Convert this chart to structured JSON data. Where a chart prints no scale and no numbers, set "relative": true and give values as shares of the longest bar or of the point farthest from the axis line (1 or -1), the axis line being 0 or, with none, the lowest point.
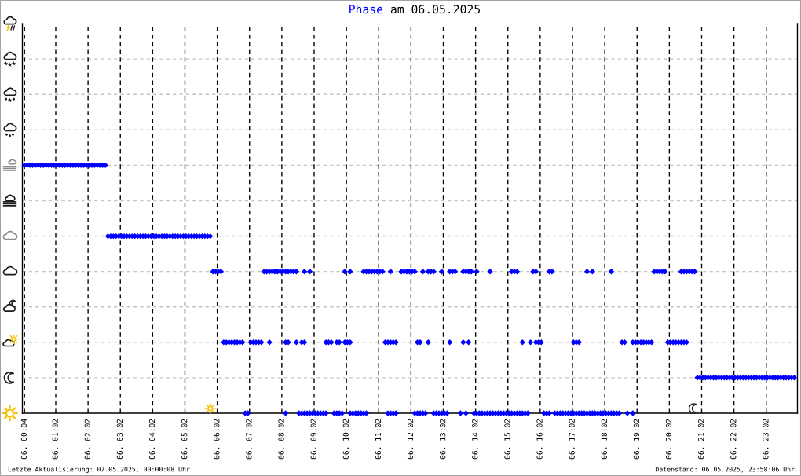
{
  "chart_data": {
    "type": "scatter",
    "title": "Phase am 06.05.2025",
    "xlim": [
      "2025-05-06T00:00",
      "2025-05-07T00:00"
    ],
    "xticks": [
      {
        "value": "2025-05-06T00:04",
        "label": "06. 00:04"
      },
      {
        "value": "2025-05-06T01:02",
        "label": "06. 01:02"
      },
      {
        "value": "2025-05-06T02:02",
        "label": "06. 02:02"
      },
      {
        "value": "2025-05-06T03:02",
        "label": "06. 03:02"
      },
      {
        "value": "2025-05-06T04:02",
        "label": "06. 04:02"
      },
      {
        "value": "2025-05-06T05:02",
        "label": "06. 05:02"
      },
      {
        "value": "2025-05-06T06:02",
        "label": "06. 06:02"
      },
      {
        "value": "2025-05-06T07:02",
        "label": "06. 07:02"
      },
      {
        "value": "2025-05-06T08:02",
        "label": "06. 08:02"
      },
      {
        "value": "2025-05-06T09:02",
        "label": "06. 09:02"
      },
      {
        "value": "2025-05-06T10:02",
        "label": "06. 10:02"
      },
      {
        "value": "2025-05-06T11:02",
        "label": "06. 11:02"
      },
      {
        "value": "2025-05-06T12:02",
        "label": "06. 12:02"
      },
      {
        "value": "2025-05-06T13:02",
        "label": "06. 13:02"
      },
      {
        "value": "2025-05-06T14:02",
        "label": "06. 14:02"
      },
      {
        "value": "2025-05-06T15:02",
        "label": "06. 15:02"
      },
      {
        "value": "2025-05-06T16:02",
        "label": "06. 16:02"
      },
      {
        "value": "2025-05-06T17:02",
        "label": "06. 17:02"
      },
      {
        "value": "2025-05-06T18:02",
        "label": "06. 18:02"
      },
      {
        "value": "2025-05-06T19:02",
        "label": "06. 19:02"
      },
      {
        "value": "2025-05-06T20:02",
        "label": "06. 20:02"
      },
      {
        "value": "2025-05-06T21:02",
        "label": "06. 21:02"
      },
      {
        "value": "2025-05-06T22:02",
        "label": "06. 22:02"
      },
      {
        "value": "2025-05-06T23:02",
        "label": "06. 23:02"
      }
    ],
    "relative": true,
    "tick_labels": "x",
    "grid": true,
    "marker": "diamond",
    "color": "#0000ff",
    "x": [
      "2025-05-06T00:04",
      "2025-05-06T00:09",
      "2025-05-06T00:14",
      "2025-05-06T00:19",
      "2025-05-06T00:24",
      "2025-05-06T00:29",
      "2025-05-06T00:34",
      "2025-05-06T00:39",
      "2025-05-06T00:44",
      "2025-05-06T00:49",
      "2025-05-06T00:54",
      "2025-05-06T00:59",
      "2025-05-06T01:04",
      "2025-05-06T01:09",
      "2025-05-06T01:14",
      "2025-05-06T01:19",
      "2025-05-06T01:24",
      "2025-05-06T01:29",
      "2025-05-06T01:34",
      "2025-05-06T01:39",
      "2025-05-06T01:44",
      "2025-05-06T01:49",
      "2025-05-06T01:54",
      "2025-05-06T01:59",
      "2025-05-06T02:04",
      "2025-05-06T02:09",
      "2025-05-06T02:14",
      "2025-05-06T02:19",
      "2025-05-06T02:24",
      "2025-05-06T02:29",
      "2025-05-06T02:34",
      "2025-05-06T02:39",
      "2025-05-06T02:44",
      "2025-05-06T02:49",
      "2025-05-06T02:54",
      "2025-05-06T02:59",
      "2025-05-06T03:04",
      "2025-05-06T03:09",
      "2025-05-06T03:14",
      "2025-05-06T03:19",
      "2025-05-06T03:24",
      "2025-05-06T03:29",
      "2025-05-06T03:34",
      "2025-05-06T03:39",
      "2025-05-06T03:44",
      "2025-05-06T03:49",
      "2025-05-06T03:54",
      "2025-05-06T03:59",
      "2025-05-06T04:04",
      "2025-05-06T04:09",
      "2025-05-06T04:14",
      "2025-05-06T04:19",
      "2025-05-06T04:24",
      "2025-05-06T04:29",
      "2025-05-06T04:34",
      "2025-05-06T04:39",
      "2025-05-06T04:44",
      "2025-05-06T04:49",
      "2025-05-06T04:54",
      "2025-05-06T04:59",
      "2025-05-06T05:04",
      "2025-05-06T05:09",
      "2025-05-06T05:14",
      "2025-05-06T05:19",
      "2025-05-06T05:24",
      "2025-05-06T05:29",
      "2025-05-06T05:34",
      "2025-05-06T05:39",
      "2025-05-06T05:44",
      "2025-05-06T05:49",
      "2025-05-06T05:54",
      "2025-05-06T05:59",
      "2025-05-06T06:04",
      "2025-05-06T06:09",
      "2025-05-06T07:29",
      "2025-05-06T07:34",
      "2025-05-06T07:39",
      "2025-05-06T07:44",
      "2025-05-06T07:49",
      "2025-05-06T07:54",
      "2025-05-06T07:59",
      "2025-05-06T08:04",
      "2025-05-06T08:09",
      "2025-05-06T08:14",
      "2025-05-06T08:19",
      "2025-05-06T08:24",
      "2025-05-06T08:29",
      "2025-05-06T08:44",
      "2025-05-06T08:54",
      "2025-05-06T09:59",
      "2025-05-06T10:09",
      "2025-05-06T10:34",
      "2025-05-06T10:39",
      "2025-05-06T10:44",
      "2025-05-06T10:49",
      "2025-05-06T10:54",
      "2025-05-06T10:59",
      "2025-05-06T11:04",
      "2025-05-06T11:09",
      "2025-05-06T11:24",
      "2025-05-06T11:44",
      "2025-05-06T11:49",
      "2025-05-06T11:54",
      "2025-05-06T11:59",
      "2025-05-06T12:04",
      "2025-05-06T12:09",
      "2025-05-06T12:24",
      "2025-05-06T12:34",
      "2025-05-06T12:39",
      "2025-05-06T12:44",
      "2025-05-06T12:59",
      "2025-05-06T13:14",
      "2025-05-06T13:19",
      "2025-05-06T13:24",
      "2025-05-06T13:39",
      "2025-05-06T13:44",
      "2025-05-06T13:49",
      "2025-05-06T13:54",
      "2025-05-06T14:04",
      "2025-05-06T14:29",
      "2025-05-06T15:09",
      "2025-05-06T15:14",
      "2025-05-06T15:19",
      "2025-05-06T15:49",
      "2025-05-06T15:54",
      "2025-05-06T16:19",
      "2025-05-06T16:24",
      "2025-05-06T17:29",
      "2025-05-06T17:39",
      "2025-05-06T18:14",
      "2025-05-06T19:34",
      "2025-05-06T19:39",
      "2025-05-06T19:44",
      "2025-05-06T19:49",
      "2025-05-06T19:54",
      "2025-05-06T20:24",
      "2025-05-06T20:29",
      "2025-05-06T20:34",
      "2025-05-06T20:39",
      "2025-05-06T20:44",
      "2025-05-06T20:49",
      "2025-05-06T06:14",
      "2025-05-06T06:19",
      "2025-05-06T06:24",
      "2025-05-06T06:29",
      "2025-05-06T06:34",
      "2025-05-06T06:39",
      "2025-05-06T06:44",
      "2025-05-06T06:49",
      "2025-05-06T07:04",
      "2025-05-06T07:09",
      "2025-05-06T07:14",
      "2025-05-06T07:19",
      "2025-05-06T07:24",
      "2025-05-06T07:39",
      "2025-05-06T08:09",
      "2025-05-06T08:14",
      "2025-05-06T08:29",
      "2025-05-06T08:39",
      "2025-05-06T08:44",
      "2025-05-06T09:24",
      "2025-05-06T09:29",
      "2025-05-06T09:34",
      "2025-05-06T09:44",
      "2025-05-06T09:49",
      "2025-05-06T09:59",
      "2025-05-06T10:04",
      "2025-05-06T10:09",
      "2025-05-06T11:14",
      "2025-05-06T11:19",
      "2025-05-06T11:24",
      "2025-05-06T11:29",
      "2025-05-06T11:34",
      "2025-05-06T12:14",
      "2025-05-06T12:19",
      "2025-05-06T12:34",
      "2025-05-06T13:14",
      "2025-05-06T13:39",
      "2025-05-06T13:49",
      "2025-05-06T15:29",
      "2025-05-06T15:44",
      "2025-05-06T15:54",
      "2025-05-06T15:59",
      "2025-05-06T16:04",
      "2025-05-06T17:04",
      "2025-05-06T17:09",
      "2025-05-06T17:14",
      "2025-05-06T18:34",
      "2025-05-06T18:39",
      "2025-05-06T18:54",
      "2025-05-06T18:59",
      "2025-05-06T19:04",
      "2025-05-06T19:09",
      "2025-05-06T19:14",
      "2025-05-06T19:19",
      "2025-05-06T19:24",
      "2025-05-06T19:29",
      "2025-05-06T19:59",
      "2025-05-06T20:04",
      "2025-05-06T20:09",
      "2025-05-06T20:14",
      "2025-05-06T20:19",
      "2025-05-06T20:24",
      "2025-05-06T20:29",
      "2025-05-06T20:34",
      "2025-05-06T06:54",
      "2025-05-06T06:59",
      "2025-05-06T08:09",
      "2025-05-06T08:34",
      "2025-05-06T08:39",
      "2025-05-06T08:44",
      "2025-05-06T08:49",
      "2025-05-06T08:54",
      "2025-05-06T08:59",
      "2025-05-06T09:04",
      "2025-05-06T09:09",
      "2025-05-06T09:14",
      "2025-05-06T09:19",
      "2025-05-06T09:24",
      "2025-05-06T09:39",
      "2025-05-06T09:44",
      "2025-05-06T09:49",
      "2025-05-06T09:54",
      "2025-05-06T10:09",
      "2025-05-06T10:14",
      "2025-05-06T10:19",
      "2025-05-06T10:24",
      "2025-05-06T10:29",
      "2025-05-06T10:34",
      "2025-05-06T10:39",
      "2025-05-06T11:19",
      "2025-05-06T11:24",
      "2025-05-06T11:29",
      "2025-05-06T11:34",
      "2025-05-06T12:09",
      "2025-05-06T12:14",
      "2025-05-06T12:19",
      "2025-05-06T12:24",
      "2025-05-06T12:29",
      "2025-05-06T12:44",
      "2025-05-06T12:49",
      "2025-05-06T12:54",
      "2025-05-06T12:59",
      "2025-05-06T13:04",
      "2025-05-06T13:09",
      "2025-05-06T13:34",
      "2025-05-06T13:44",
      "2025-05-06T13:59",
      "2025-05-06T14:04",
      "2025-05-06T14:09",
      "2025-05-06T14:14",
      "2025-05-06T14:19",
      "2025-05-06T14:24",
      "2025-05-06T14:29",
      "2025-05-06T14:34",
      "2025-05-06T14:39",
      "2025-05-06T14:44",
      "2025-05-06T14:49",
      "2025-05-06T14:54",
      "2025-05-06T14:59",
      "2025-05-06T15:04",
      "2025-05-06T15:09",
      "2025-05-06T15:14",
      "2025-05-06T15:19",
      "2025-05-06T15:24",
      "2025-05-06T15:29",
      "2025-05-06T15:34",
      "2025-05-06T15:39",
      "2025-05-06T16:09",
      "2025-05-06T16:14",
      "2025-05-06T16:19",
      "2025-05-06T16:29",
      "2025-05-06T16:34",
      "2025-05-06T16:39",
      "2025-05-06T16:44",
      "2025-05-06T16:49",
      "2025-05-06T16:54",
      "2025-05-06T16:59",
      "2025-05-06T17:04",
      "2025-05-06T17:09",
      "2025-05-06T17:14",
      "2025-05-06T17:19",
      "2025-05-06T17:24",
      "2025-05-06T17:29",
      "2025-05-06T17:34",
      "2025-05-06T17:39",
      "2025-05-06T17:44",
      "2025-05-06T17:49",
      "2025-05-06T17:54",
      "2025-05-06T17:59",
      "2025-05-06T18:04",
      "2025-05-06T18:09",
      "2025-05-06T18:14",
      "2025-05-06T18:19",
      "2025-05-06T18:24",
      "2025-05-06T18:29",
      "2025-05-06T18:44",
      "2025-05-06T18:54",
      "2025-05-06T20:54",
      "2025-05-06T20:59",
      "2025-05-06T21:04",
      "2025-05-06T21:09",
      "2025-05-06T21:14",
      "2025-05-06T21:19",
      "2025-05-06T21:24",
      "2025-05-06T21:29",
      "2025-05-06T21:34",
      "2025-05-06T21:39",
      "2025-05-06T21:44",
      "2025-05-06T21:49",
      "2025-05-06T21:54",
      "2025-05-06T21:59",
      "2025-05-06T22:04",
      "2025-05-06T22:09",
      "2025-05-06T22:14",
      "2025-05-06T22:19",
      "2025-05-06T22:24",
      "2025-05-06T22:29",
      "2025-05-06T22:34",
      "2025-05-06T22:39",
      "2025-05-06T22:44",
      "2025-05-06T22:49",
      "2025-05-06T22:54",
      "2025-05-06T22:59",
      "2025-05-06T23:04",
      "2025-05-06T23:09",
      "2025-05-06T23:14",
      "2025-05-06T23:19",
      "2025-05-06T23:24",
      "2025-05-06T23:29",
      "2025-05-06T23:34",
      "2025-05-06T23:39",
      "2025-05-06T23:44",
      "2025-05-06T23:49",
      "2025-05-06T23:54"
    ],
    "values": [
      1,
      1,
      1,
      1,
      1,
      1,
      1,
      1,
      1,
      1,
      1,
      1,
      1,
      1,
      1,
      1,
      1,
      1,
      1,
      1,
      1,
      1,
      1,
      1,
      1,
      1,
      1,
      1,
      1,
      1,
      1,
      0.714,
      0.714,
      0.714,
      0.714,
      0.714,
      0.714,
      0.714,
      0.714,
      0.714,
      0.714,
      0.714,
      0.714,
      0.714,
      0.714,
      0.714,
      0.714,
      0.714,
      0.714,
      0.714,
      0.714,
      0.714,
      0.714,
      0.714,
      0.714,
      0.714,
      0.714,
      0.714,
      0.714,
      0.714,
      0.714,
      0.714,
      0.714,
      0.714,
      0.714,
      0.714,
      0.714,
      0.714,
      0.714,
      0.714,
      0.571,
      0.571,
      0.571,
      0.571,
      0.571,
      0.571,
      0.571,
      0.571,
      0.571,
      0.571,
      0.571,
      0.571,
      0.571,
      0.571,
      0.571,
      0.571,
      0.571,
      0.571,
      0.571,
      0.571,
      0.571,
      0.571,
      0.571,
      0.571,
      0.571,
      0.571,
      0.571,
      0.571,
      0.571,
      0.571,
      0.571,
      0.571,
      0.571,
      0.571,
      0.571,
      0.571,
      0.571,
      0.571,
      0.571,
      0.571,
      0.571,
      0.571,
      0.571,
      0.571,
      0.571,
      0.571,
      0.571,
      0.571,
      0.571,
      0.571,
      0.571,
      0.571,
      0.571,
      0.571,
      0.571,
      0.571,
      0.571,
      0.571,
      0.571,
      0.571,
      0.571,
      0.571,
      0.571,
      0.571,
      0.571,
      0.571,
      0.571,
      0.571,
      0.571,
      0.571,
      0.571,
      0.286,
      0.286,
      0.286,
      0.286,
      0.286,
      0.286,
      0.286,
      0.286,
      0.286,
      0.286,
      0.286,
      0.286,
      0.286,
      0.286,
      0.286,
      0.286,
      0.286,
      0.286,
      0.286,
      0.286,
      0.286,
      0.286,
      0.286,
      0.286,
      0.286,
      0.286,
      0.286,
      0.286,
      0.286,
      0.286,
      0.286,
      0.286,
      0.286,
      0.286,
      0.286,
      0.286,
      0.286,
      0.286,
      0.286,
      0.286,
      0.286,
      0.286,
      0.286,
      0.286,
      0.286,
      0.286,
      0.286,
      0.286,
      0.286,
      0.286,
      0.286,
      0.286,
      0.286,
      0.286,
      0.286,
      0.286,
      0.286,
      0.286,
      0.286,
      0.286,
      0.286,
      0.286,
      0.286,
      0.286,
      0,
      0,
      0,
      0,
      0,
      0,
      0,
      0,
      0,
      0,
      0,
      0,
      0,
      0,
      0,
      0,
      0,
      0,
      0,
      0,
      0,
      0,
      0,
      0,
      0,
      0,
      0,
      0,
      0,
      0,
      0,
      0,
      0,
      0,
      0,
      0,
      0,
      0,
      0,
      0,
      0,
      0,
      0,
      0,
      0,
      0,
      0,
      0,
      0,
      0,
      0,
      0,
      0,
      0,
      0,
      0,
      0,
      0,
      0,
      0,
      0,
      0,
      0,
      0,
      0,
      0,
      0,
      0,
      0,
      0,
      0,
      0,
      0,
      0,
      0,
      0,
      0,
      0,
      0,
      0,
      0,
      0,
      0,
      0,
      0,
      0,
      0,
      0,
      0,
      0,
      0,
      0,
      0,
      0.143,
      0.143,
      0.143,
      0.143,
      0.143,
      0.143,
      0.143,
      0.143,
      0.143,
      0.143,
      0.143,
      0.143,
      0.143,
      0.143,
      0.143,
      0.143,
      0.143,
      0.143,
      0.143,
      0.143,
      0.143,
      0.143,
      0.143,
      0.143,
      0.143,
      0.143,
      0.143,
      0.143,
      0.143,
      0.143,
      0.143,
      0.143,
      0.143,
      0.143,
      0.143,
      0.143,
      0.143
    ],
    "annotations": [
      "Letzte Aktualisierung: 07.05.2025, 00:00:08 Uhr",
      "Datenstand: 06.05.2025, 23:58:06 Uhr"
    ]
  }
}
